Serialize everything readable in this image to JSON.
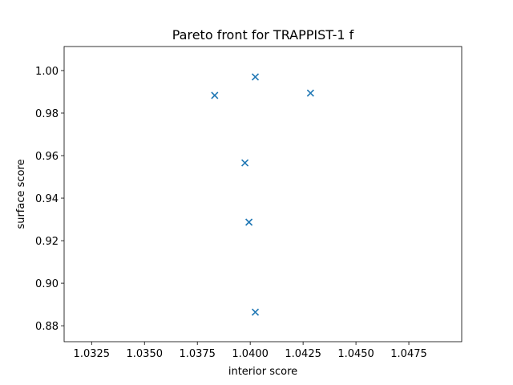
{
  "chart_data": {
    "type": "scatter",
    "title": "Pareto front for TRAPPIST-1 f",
    "xlabel": "interior score",
    "ylabel": "surface score",
    "series": [
      {
        "color": "#1f77b4",
        "marker": "x",
        "x": [
          1.03832,
          1.04024,
          1.04285,
          1.03975,
          1.03994,
          1.04024
        ],
        "values": [
          0.9883,
          0.997,
          0.9894,
          0.9566,
          0.9287,
          0.8864
        ]
      }
    ],
    "xlim": [
      1.0312,
      1.05
    ],
    "ylim": [
      0.8725,
      1.0113
    ],
    "xticks": [
      1.0325,
      {
        "value": 1.035,
        "label": "1.0350"
      },
      1.0375,
      {
        "value": 1.04,
        "label": "1.0400"
      },
      1.0425,
      {
        "value": 1.045,
        "label": "1.0450"
      },
      1.0475
    ],
    "yticks": [
      0.88,
      {
        "value": 0.9,
        "label": "0.90"
      },
      0.92,
      0.94,
      0.96,
      0.98,
      {
        "value": 1.0,
        "label": "1.00"
      }
    ],
    "grid": false
  }
}
